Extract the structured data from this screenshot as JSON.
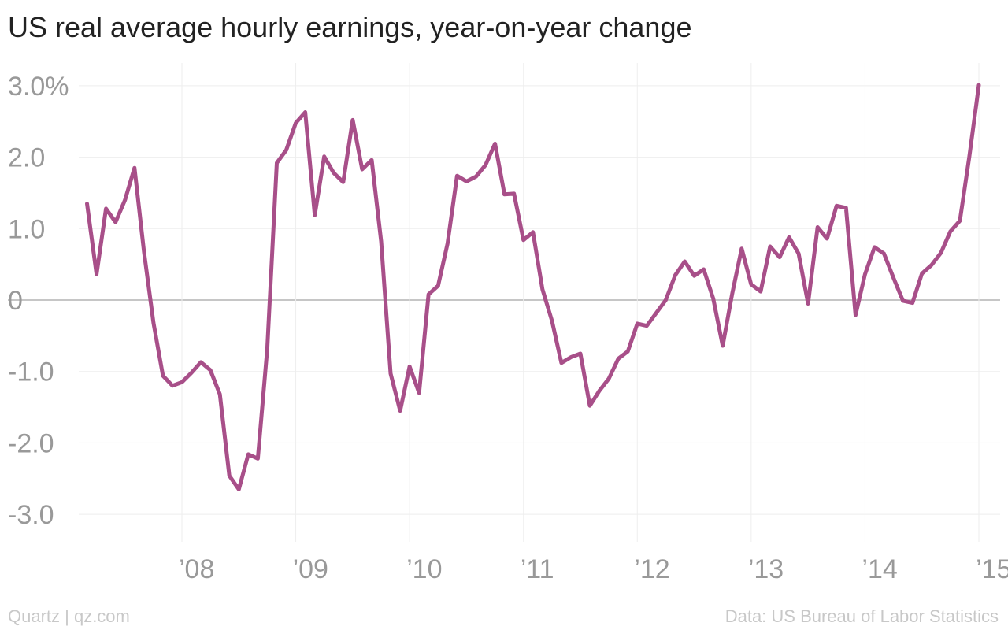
{
  "chart_data": {
    "type": "line",
    "title": "US real average hourly earnings, year-on-year change",
    "ylim": [
      -3.6,
      3.0
    ],
    "y_ticks": [
      -3,
      -2,
      -1,
      0,
      1,
      2,
      3
    ],
    "y_tick_labels": [
      "-3.0",
      "-2.0",
      "-1.0",
      "0",
      "1.0",
      "2.0",
      "3.0%"
    ],
    "x_ticks": [
      2008,
      2009,
      2010,
      2011,
      2012,
      2013,
      2014,
      2015
    ],
    "x_tick_labels": [
      "’08",
      "’09",
      "’10",
      "’11",
      "’12",
      "’13",
      "’14",
      "’15"
    ],
    "grid": true,
    "colors": {
      "line": "#a84f89",
      "grid": "#eeeeee",
      "zero": "#b3b3b3",
      "tick_text": "#999999"
    },
    "series": [
      {
        "x": [
          "2007-03",
          "2007-04",
          "2007-05",
          "2007-06",
          "2007-07",
          "2007-08",
          "2007-09",
          "2007-10",
          "2007-11",
          "2007-12",
          "2008-01",
          "2008-02",
          "2008-03",
          "2008-04",
          "2008-05",
          "2008-06",
          "2008-07",
          "2008-08",
          "2008-09",
          "2008-10",
          "2008-11",
          "2008-12",
          "2009-01",
          "2009-02",
          "2009-03",
          "2009-04",
          "2009-05",
          "2009-06",
          "2009-07",
          "2009-08",
          "2009-09",
          "2009-10",
          "2009-11",
          "2009-12",
          "2010-01",
          "2010-02",
          "2010-03",
          "2010-04",
          "2010-05",
          "2010-06",
          "2010-07",
          "2010-08",
          "2010-09",
          "2010-10",
          "2010-11",
          "2010-12",
          "2011-01",
          "2011-02",
          "2011-03",
          "2011-04",
          "2011-05",
          "2011-06",
          "2011-07",
          "2011-08",
          "2011-09",
          "2011-10",
          "2011-11",
          "2011-12",
          "2012-01",
          "2012-02",
          "2012-03",
          "2012-04",
          "2012-05",
          "2012-06",
          "2012-07",
          "2012-08",
          "2012-09",
          "2012-10",
          "2012-11",
          "2012-12",
          "2013-01",
          "2013-02",
          "2013-03",
          "2013-04",
          "2013-05",
          "2013-06",
          "2013-07",
          "2013-08",
          "2013-09",
          "2013-10",
          "2013-11",
          "2013-12",
          "2014-01",
          "2014-02",
          "2014-03",
          "2014-04",
          "2014-05",
          "2014-06",
          "2014-07",
          "2014-08",
          "2014-09",
          "2014-10",
          "2014-11",
          "2014-12",
          "2015-01"
        ],
        "values": [
          1.35,
          0.36,
          1.28,
          1.09,
          1.4,
          1.85,
          0.68,
          -0.32,
          -1.06,
          -1.2,
          -1.15,
          -1.02,
          -0.87,
          -0.98,
          -1.32,
          -2.46,
          -2.65,
          -2.16,
          -2.22,
          -0.68,
          1.92,
          2.1,
          2.48,
          2.63,
          1.19,
          2.01,
          1.78,
          1.65,
          2.52,
          1.83,
          1.96,
          0.82,
          -1.03,
          -1.55,
          -0.93,
          -1.3,
          0.08,
          0.2,
          0.79,
          1.74,
          1.66,
          1.73,
          1.89,
          2.19,
          1.48,
          1.49,
          0.84,
          0.95,
          0.15,
          -0.29,
          -0.88,
          -0.8,
          -0.75,
          -1.48,
          -1.27,
          -1.1,
          -0.82,
          -0.72,
          -0.33,
          -0.36,
          -0.18,
          0.0,
          0.35,
          0.54,
          0.34,
          0.43,
          0.02,
          -0.64,
          0.09,
          0.72,
          0.22,
          0.12,
          0.75,
          0.6,
          0.88,
          0.65,
          -0.05,
          1.02,
          0.86,
          1.32,
          1.29,
          -0.21,
          0.36,
          0.74,
          0.65,
          0.31,
          -0.01,
          -0.04,
          0.37,
          0.49,
          0.66,
          0.96,
          1.11,
          2.01,
          3.01
        ]
      }
    ]
  },
  "footer": {
    "credit": "Quartz | qz.com",
    "source": "Data: US Bureau of Labor Statistics"
  }
}
